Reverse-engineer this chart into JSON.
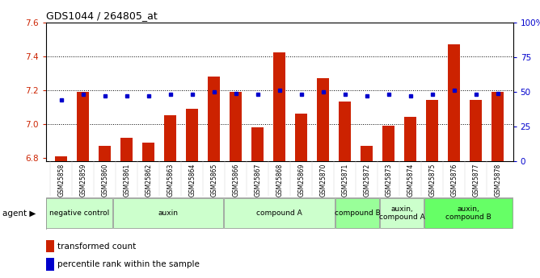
{
  "title": "GDS1044 / 264805_at",
  "samples": [
    "GSM25858",
    "GSM25859",
    "GSM25860",
    "GSM25861",
    "GSM25862",
    "GSM25863",
    "GSM25864",
    "GSM25865",
    "GSM25866",
    "GSM25867",
    "GSM25868",
    "GSM25869",
    "GSM25870",
    "GSM25871",
    "GSM25872",
    "GSM25873",
    "GSM25874",
    "GSM25875",
    "GSM25876",
    "GSM25877",
    "GSM25878"
  ],
  "bar_values": [
    6.81,
    7.19,
    6.87,
    6.92,
    6.89,
    7.05,
    7.09,
    7.28,
    7.19,
    6.98,
    7.42,
    7.06,
    7.27,
    7.13,
    6.87,
    6.99,
    7.04,
    7.14,
    7.47,
    7.14,
    7.19
  ],
  "percentile_values": [
    44,
    48,
    47,
    47,
    47,
    48,
    48,
    50,
    49,
    48,
    51,
    48,
    50,
    48,
    47,
    48,
    47,
    48,
    51,
    48,
    49
  ],
  "ylim_left": [
    6.78,
    7.6
  ],
  "ylim_right": [
    0,
    100
  ],
  "yticks_left": [
    6.8,
    7.0,
    7.2,
    7.4,
    7.6
  ],
  "yticks_right": [
    0,
    25,
    50,
    75,
    100
  ],
  "bar_color": "#cc2200",
  "dot_color": "#0000cc",
  "groups": [
    {
      "label": "negative control",
      "start": 0,
      "end": 3,
      "color": "#ccffcc"
    },
    {
      "label": "auxin",
      "start": 3,
      "end": 8,
      "color": "#ccffcc"
    },
    {
      "label": "compound A",
      "start": 8,
      "end": 13,
      "color": "#ccffcc"
    },
    {
      "label": "compound B",
      "start": 13,
      "end": 15,
      "color": "#99ff99"
    },
    {
      "label": "auxin,\ncompound A",
      "start": 15,
      "end": 17,
      "color": "#ccffcc"
    },
    {
      "label": "auxin,\ncompound B",
      "start": 17,
      "end": 21,
      "color": "#66ff66"
    }
  ],
  "legend_bar_label": "transformed count",
  "legend_dot_label": "percentile rank within the sample",
  "left_axis_color": "#cc2200",
  "right_axis_color": "#0000cc",
  "grid_color": "black",
  "grid_linestyle": "dotted",
  "grid_linewidth": 0.7,
  "bar_bottom": 6.78,
  "agent_label": "agent ▶"
}
